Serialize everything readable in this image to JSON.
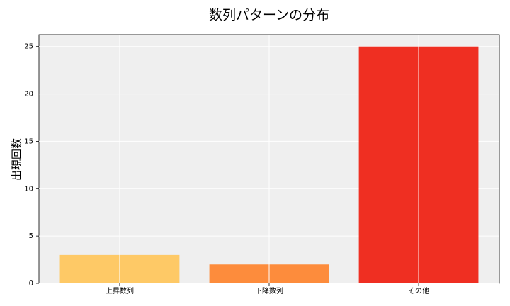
{
  "chart_data": {
    "type": "bar",
    "title": "数列パターンの分布",
    "y_label": "出現回数",
    "categories": [
      "上昇数列",
      "下降数列",
      "その他"
    ],
    "values": [
      3,
      2,
      25
    ],
    "colors": [
      "#fec966",
      "#fd8c3c",
      "#ef2f22"
    ],
    "ylim": [
      0,
      26.25
    ],
    "yticks": [
      0,
      5,
      10,
      15,
      20,
      25
    ],
    "grid": true
  }
}
